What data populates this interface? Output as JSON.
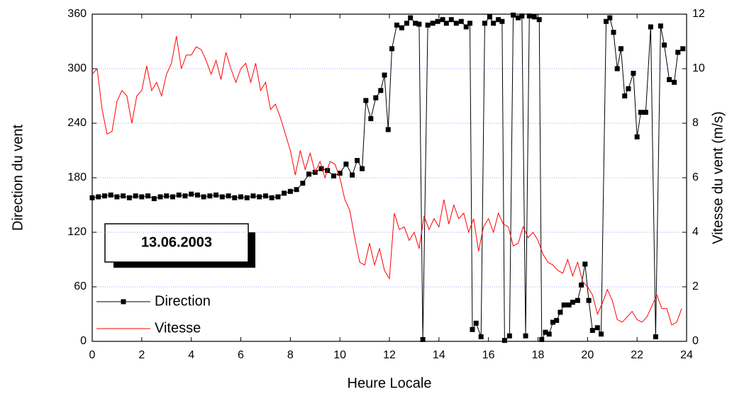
{
  "chart_data": {
    "type": "line",
    "xlabel": "Heure Locale",
    "ylabel": "Direction du vent",
    "y2label": "Vitesse du vent (m/s)",
    "annotation": "13.06.2003",
    "xlim": [
      0,
      24
    ],
    "xticks": [
      0,
      2,
      4,
      6,
      8,
      10,
      12,
      14,
      16,
      18,
      20,
      22,
      24
    ],
    "ylim": [
      0,
      360
    ],
    "yticks": [
      0,
      60,
      120,
      180,
      240,
      300,
      360
    ],
    "y2lim": [
      0,
      12
    ],
    "y2ticks": [
      0,
      2,
      4,
      6,
      8,
      10,
      12
    ],
    "grid": true,
    "grid_color": "#8080ff",
    "legend": "lower left",
    "series": [
      {
        "name": "Direction",
        "color": "#000000",
        "marker": "square",
        "x": [
          0,
          0.25,
          0.5,
          0.75,
          1,
          1.25,
          1.5,
          1.75,
          2,
          2.25,
          2.5,
          2.75,
          3,
          3.25,
          3.5,
          3.75,
          4,
          4.25,
          4.5,
          4.75,
          5,
          5.25,
          5.5,
          5.75,
          6,
          6.25,
          6.5,
          6.75,
          7,
          7.25,
          7.5,
          7.75,
          8,
          8.25,
          8.5,
          8.75,
          9,
          9.25,
          9.5,
          9.75,
          10,
          10.25,
          10.5,
          10.7,
          10.9,
          11.05,
          11.25,
          11.45,
          11.65,
          11.8,
          11.95,
          12.1,
          12.3,
          12.5,
          12.7,
          12.85,
          13.05,
          13.2,
          13.35,
          13.55,
          13.75,
          13.95,
          14.15,
          14.3,
          14.5,
          14.7,
          14.9,
          15.1,
          15.25,
          15.35,
          15.5,
          15.7,
          15.85,
          16.05,
          16.2,
          16.4,
          16.55,
          16.65,
          16.85,
          17,
          17.2,
          17.35,
          17.5,
          17.65,
          17.85,
          18.05,
          18.15,
          18.3,
          18.45,
          18.6,
          18.75,
          18.9,
          19.05,
          19.25,
          19.4,
          19.6,
          19.75,
          19.9,
          20.05,
          20.2,
          20.4,
          20.55,
          20.75,
          20.9,
          21.05,
          21.2,
          21.35,
          21.5,
          21.65,
          21.85,
          22,
          22.15,
          22.35,
          22.55,
          22.75,
          22.95,
          23.1,
          23.3,
          23.5,
          23.65,
          23.85
        ],
        "values": [
          158,
          159,
          160,
          161,
          159,
          160,
          158,
          160,
          159,
          160,
          157,
          159,
          160,
          159,
          161,
          160,
          162,
          161,
          159,
          160,
          161,
          159,
          160,
          158,
          159,
          158,
          160,
          159,
          160,
          158,
          159,
          163,
          165,
          167,
          174,
          184,
          186,
          190,
          188,
          182,
          185,
          195,
          183,
          199,
          190,
          265,
          245,
          268,
          276,
          293,
          233,
          322,
          348,
          345,
          350,
          356,
          350,
          349,
          2,
          348,
          350,
          352,
          354,
          350,
          354,
          350,
          352,
          346,
          350,
          13,
          20,
          5,
          350,
          357,
          350,
          354,
          352,
          1,
          6,
          359,
          356,
          358,
          6,
          358,
          357,
          354,
          2,
          10,
          8,
          21,
          23,
          32,
          40,
          40,
          43,
          45,
          62,
          85,
          45,
          12,
          15,
          8,
          352,
          356,
          340,
          300,
          322,
          270,
          278,
          295,
          225,
          252,
          252,
          346,
          5,
          347,
          326,
          288,
          285,
          318,
          322
        ]
      },
      {
        "name": "Vitesse",
        "color": "#ff0000",
        "axis": "y2",
        "x": [
          0,
          0.2,
          0.4,
          0.6,
          0.8,
          1,
          1.2,
          1.4,
          1.6,
          1.8,
          2,
          2.2,
          2.4,
          2.6,
          2.8,
          3,
          3.2,
          3.4,
          3.6,
          3.8,
          4,
          4.2,
          4.4,
          4.6,
          4.8,
          5,
          5.2,
          5.4,
          5.6,
          5.8,
          6,
          6.2,
          6.4,
          6.6,
          6.8,
          7,
          7.2,
          7.4,
          7.6,
          7.8,
          8,
          8.2,
          8.4,
          8.6,
          8.8,
          9,
          9.2,
          9.4,
          9.6,
          9.8,
          10,
          10.2,
          10.4,
          10.6,
          10.8,
          11,
          11.2,
          11.4,
          11.6,
          11.8,
          12,
          12.2,
          12.4,
          12.6,
          12.8,
          13,
          13.2,
          13.4,
          13.6,
          13.8,
          14,
          14.2,
          14.4,
          14.6,
          14.8,
          15,
          15.2,
          15.4,
          15.6,
          15.8,
          16,
          16.2,
          16.4,
          16.6,
          16.8,
          17,
          17.2,
          17.4,
          17.6,
          17.8,
          18,
          18.2,
          18.4,
          18.6,
          18.8,
          19,
          19.2,
          19.4,
          19.6,
          19.8,
          20,
          20.2,
          20.4,
          20.6,
          20.8,
          21,
          21.2,
          21.4,
          21.6,
          21.8,
          22,
          22.2,
          22.4,
          22.6,
          22.8,
          23,
          23.2,
          23.4,
          23.6,
          23.8
        ],
        "values": [
          9.8,
          10,
          8.5,
          7.6,
          7.7,
          8.8,
          9.2,
          9.0,
          8.0,
          9.0,
          9.2,
          10.1,
          9.2,
          9.5,
          9.0,
          9.8,
          10.2,
          11.2,
          10.0,
          10.5,
          10.5,
          10.8,
          10.7,
          10.3,
          9.8,
          10.3,
          9.6,
          10.6,
          10.0,
          9.5,
          10.0,
          10.2,
          9.5,
          10.2,
          9.2,
          9.5,
          8.5,
          8.7,
          8.2,
          7.6,
          7.0,
          6.1,
          7.0,
          6.3,
          6.9,
          6.2,
          6.6,
          6.0,
          6.6,
          6.5,
          6.0,
          5.2,
          4.8,
          3.8,
          2.9,
          2.8,
          3.6,
          2.8,
          3.4,
          2.6,
          2.3,
          4.7,
          4.1,
          4.2,
          3.7,
          4.0,
          3.4,
          4.6,
          4.1,
          4.5,
          4.2,
          5.2,
          4.3,
          5.0,
          4.5,
          4.7,
          4.0,
          4.5,
          3.3,
          4.2,
          4.5,
          4.0,
          4.7,
          4.3,
          4.2,
          3.5,
          3.6,
          4.2,
          3.8,
          4.0,
          3.7,
          3.2,
          2.9,
          2.8,
          2.6,
          2.5,
          3.0,
          2.4,
          2.9,
          2.2,
          2.0,
          1.7,
          1.0,
          1.4,
          1.9,
          1.5,
          0.8,
          0.7,
          0.9,
          1.1,
          0.8,
          0.7,
          0.9,
          1.3,
          1.7,
          1.2,
          1.2,
          0.6,
          0.7,
          1.2
        ]
      }
    ]
  }
}
